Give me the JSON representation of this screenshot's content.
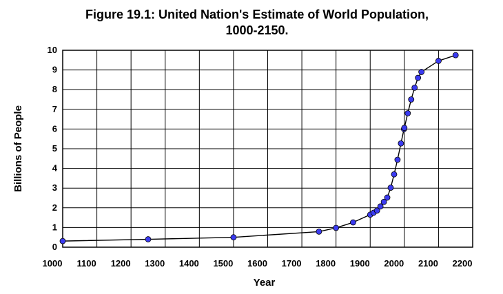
{
  "chart_data": {
    "type": "line",
    "title": [
      "Figure 19.1: United Nation's Estimate of World Population,",
      "1000-2150."
    ],
    "xlabel": "Year",
    "ylabel": "Billions of People",
    "xlim": [
      1000,
      2200
    ],
    "ylim": [
      0,
      10
    ],
    "xticks": [
      1000,
      1100,
      1200,
      1300,
      1400,
      1500,
      1600,
      1700,
      1800,
      1900,
      2000,
      2100,
      2200
    ],
    "yticks": [
      0,
      1,
      2,
      3,
      4,
      5,
      6,
      7,
      8,
      9,
      10
    ],
    "grid": true,
    "legend": "none",
    "colors": {
      "marker": "#3b3bf0",
      "line": "#000000",
      "grid": "#000000"
    },
    "series": [
      {
        "x": [
          1000,
          1250,
          1500,
          1750,
          1800,
          1850,
          1900,
          1910,
          1920,
          1930,
          1940,
          1950,
          1960,
          1970,
          1980,
          1990,
          1999,
          2000,
          2010,
          2020,
          2030,
          2040,
          2050,
          2100,
          2150
        ],
        "y": [
          0.31,
          0.4,
          0.5,
          0.79,
          0.98,
          1.26,
          1.65,
          1.75,
          1.86,
          2.07,
          2.3,
          2.52,
          3.02,
          3.7,
          4.44,
          5.27,
          6.0,
          6.06,
          6.8,
          7.5,
          8.1,
          8.6,
          8.9,
          9.46,
          9.75
        ]
      }
    ]
  }
}
